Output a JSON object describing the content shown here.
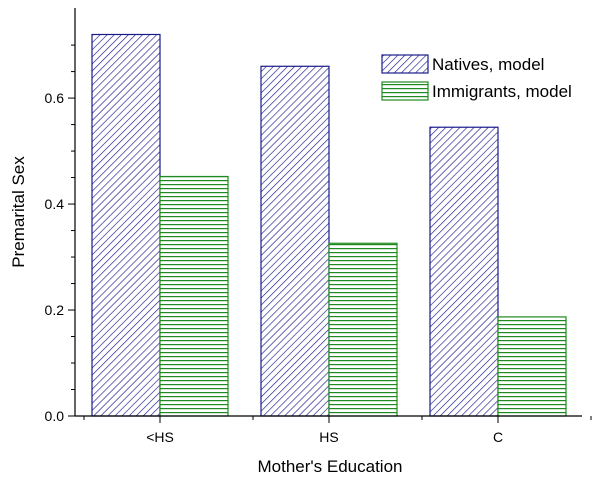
{
  "chart_data": {
    "type": "bar",
    "title": "",
    "xlabel": "Mother's Education",
    "ylabel": "Premarital Sex",
    "categories": [
      "<HS",
      "HS",
      "C"
    ],
    "ylim": [
      0,
      0.77
    ],
    "yticks": [
      "0.0",
      "0.2",
      "0.4",
      "0.6"
    ],
    "ytick_values": [
      0,
      0.2,
      0.4,
      0.6
    ],
    "grid": false,
    "legend_position": "top-right",
    "series": [
      {
        "name": "Natives, model",
        "values": [
          0.72,
          0.66,
          0.545
        ],
        "color": "#1a1a8c",
        "pattern": "diagonal-hatch"
      },
      {
        "name": "Immigrants, model",
        "values": [
          0.452,
          0.326,
          0.187
        ],
        "color": "#1f8a1f",
        "pattern": "horizontal-hatch"
      }
    ]
  }
}
